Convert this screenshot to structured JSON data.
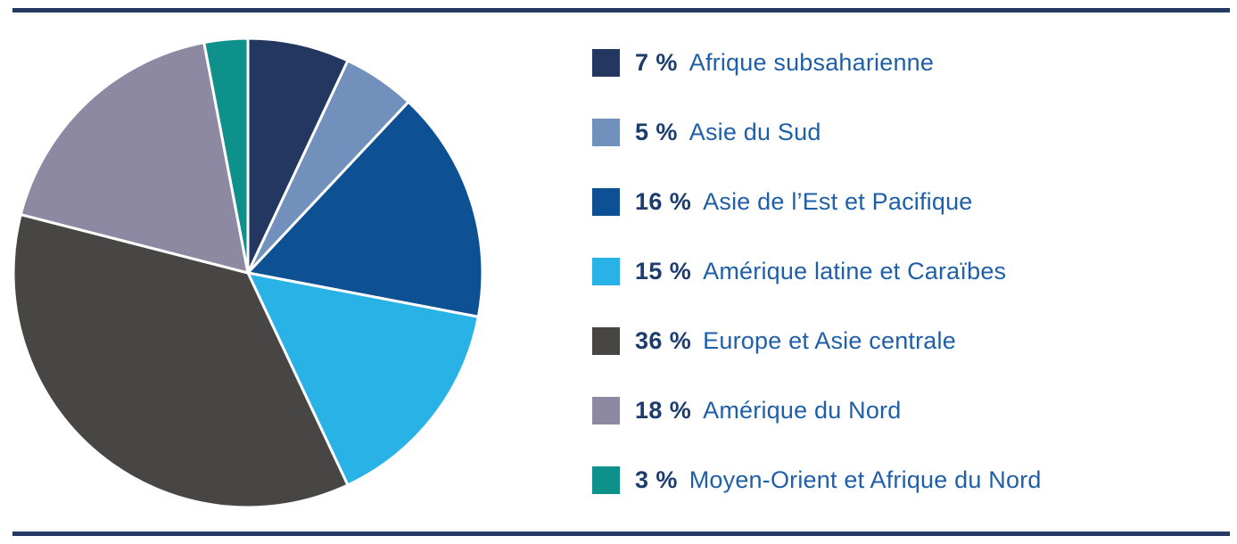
{
  "styles": {
    "rule_color": "#243a63",
    "percent_color": "#1d3c6e",
    "label_color": "#1f5fa8",
    "background": "#ffffff"
  },
  "chart_data": {
    "type": "pie",
    "title": "",
    "start_angle_deg": 0,
    "start_position": "12-oclock",
    "direction": "clockwise",
    "legend_position": "right",
    "slice_border_color": "#ffffff",
    "total": 100,
    "slices": [
      {
        "label": "Afrique subsaharienne",
        "value": 7,
        "percent_label": "7 %",
        "color": "#233760"
      },
      {
        "label": "Asie du Sud",
        "value": 5,
        "percent_label": "5 %",
        "color": "#7190bb"
      },
      {
        "label": "Asie de l’Est et Pacifique",
        "value": 16,
        "percent_label": "16 %",
        "color": "#0d5094"
      },
      {
        "label": "Amérique latine et Caraïbes",
        "value": 15,
        "percent_label": "15 %",
        "color": "#29b2e5"
      },
      {
        "label": "Europe et Asie centrale",
        "value": 36,
        "percent_label": "36 %",
        "color": "#474644"
      },
      {
        "label": "Amérique du Nord",
        "value": 18,
        "percent_label": "18 %",
        "color": "#8d89a3"
      },
      {
        "label": "Moyen-Orient et Afrique du Nord",
        "value": 3,
        "percent_label": "3 %",
        "color": "#0e918b"
      }
    ]
  }
}
